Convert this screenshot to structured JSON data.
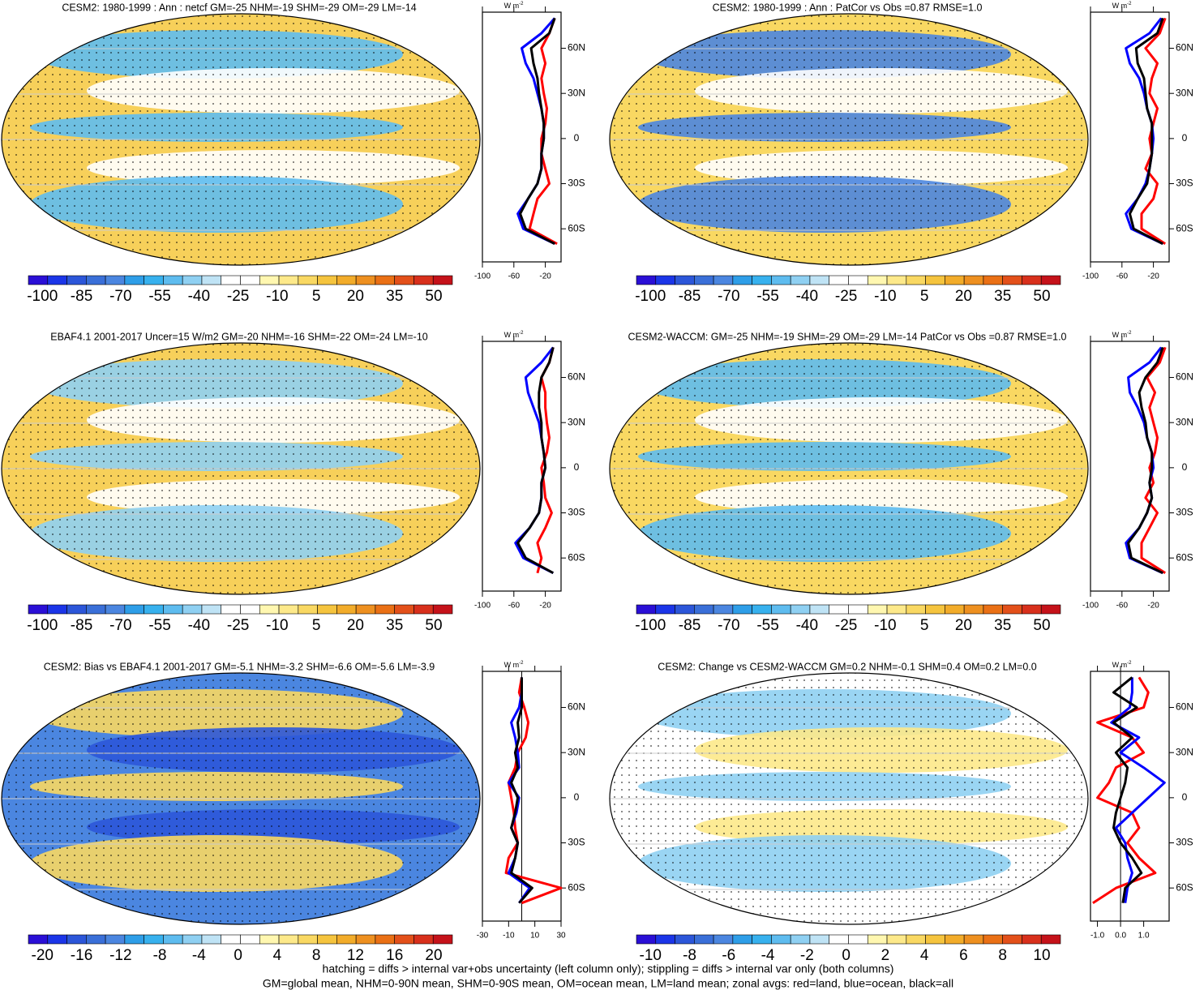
{
  "chart_data": [
    {
      "type": "line",
      "title": "CESM2: 1980-1999 : Ann : netcf GM=-25 NHM=-19 SHM=-29 OM=-29 LM=-14",
      "units": "W m",
      "units_exponent": "-2",
      "lat": [
        -70,
        -60,
        -50,
        -40,
        -30,
        -20,
        -10,
        0,
        10,
        20,
        30,
        40,
        50,
        60,
        70,
        80
      ],
      "series": [
        {
          "color": "#ff0000",
          "values": [
            -5,
            -40,
            -35,
            -30,
            -15,
            -20,
            -25,
            -25,
            -20,
            -18,
            -22,
            -25,
            -20,
            -25,
            -15,
            -8
          ]
        },
        {
          "color": "#0000ff",
          "values": [
            -8,
            -48,
            -55,
            -42,
            -30,
            -25,
            -25,
            -22,
            -22,
            -25,
            -30,
            -35,
            -45,
            -50,
            -25,
            -8
          ]
        },
        {
          "color": "#000000",
          "values": [
            -8,
            -45,
            -52,
            -42,
            -30,
            -25,
            -25,
            -22,
            -22,
            -25,
            -28,
            -30,
            -35,
            -38,
            -15,
            -8
          ]
        }
      ],
      "xlim": [
        -100,
        0
      ],
      "xticks": [
        -100,
        -60,
        -20
      ],
      "ylim": [
        -82,
        84
      ],
      "yticks": [
        {
          "value": -60,
          "label": "60S"
        },
        {
          "value": -30,
          "label": "30S"
        },
        0,
        {
          "value": 30,
          "label": "30N"
        },
        {
          "value": 60,
          "label": "60N"
        }
      ],
      "colorbar": {
        "colors": [
          "#2a0fd6",
          "#1b35e8",
          "#2c56d9",
          "#3a6fd8",
          "#4b86e0",
          "#2e9ee8",
          "#37b1ee",
          "#5ebcef",
          "#8fd0f2",
          "#bfe3f5",
          "#ffffff",
          "#ffffff",
          "#fff7b0",
          "#fde98a",
          "#f9d862",
          "#f5c43e",
          "#f2ac2a",
          "#ee9020",
          "#ea7015",
          "#e3501a",
          "#d8301c",
          "#c5121a"
        ],
        "labels": [
          -100,
          -85,
          -70,
          -55,
          -40,
          -25,
          -10,
          5,
          20,
          35,
          50
        ]
      }
    },
    {
      "type": "line",
      "title": "CESM2: 1980-1999 : Ann : PatCor vs Obs =0.87 RMSE=1.0",
      "units": "W m",
      "units_exponent": "-2",
      "lat": [
        -70,
        -60,
        -50,
        -40,
        -30,
        -20,
        -10,
        0,
        10,
        20,
        30,
        40,
        50,
        60,
        70,
        80
      ],
      "series": [
        {
          "color": "#ff0000",
          "values": [
            -5,
            -35,
            -35,
            -20,
            -15,
            -30,
            -22,
            -25,
            -20,
            -15,
            -25,
            -22,
            -15,
            -30,
            -12,
            -5
          ]
        },
        {
          "color": "#0000ff",
          "values": [
            -8,
            -48,
            -55,
            -40,
            -30,
            -25,
            -22,
            -20,
            -22,
            -28,
            -32,
            -38,
            -50,
            -55,
            -25,
            -10
          ]
        },
        {
          "color": "#000000",
          "values": [
            -8,
            -45,
            -50,
            -40,
            -28,
            -25,
            -22,
            -22,
            -22,
            -28,
            -30,
            -32,
            -40,
            -42,
            -15,
            -8
          ]
        }
      ],
      "xlim": [
        -100,
        0
      ],
      "xticks": [
        -100,
        -60,
        -20
      ],
      "ylim": [
        -82,
        84
      ],
      "yticks": [
        {
          "value": -60,
          "label": "60S"
        },
        {
          "value": -30,
          "label": "30S"
        },
        0,
        {
          "value": 30,
          "label": "30N"
        },
        {
          "value": 60,
          "label": "60N"
        }
      ],
      "colorbar": {
        "colors": [
          "#2a0fd6",
          "#1b35e8",
          "#2c56d9",
          "#3a6fd8",
          "#4b86e0",
          "#2e9ee8",
          "#37b1ee",
          "#5ebcef",
          "#8fd0f2",
          "#bfe3f5",
          "#ffffff",
          "#ffffff",
          "#fff7b0",
          "#fde98a",
          "#f9d862",
          "#f5c43e",
          "#f2ac2a",
          "#ee9020",
          "#ea7015",
          "#e3501a",
          "#d8301c",
          "#c5121a"
        ],
        "labels": [
          -100,
          -85,
          -70,
          -55,
          -40,
          -25,
          -10,
          5,
          20,
          35,
          50
        ]
      }
    },
    {
      "type": "line",
      "title": "EBAF4.1 2001-2017 Uncer=15 W/m2 GM=-20 NHM=-16 SHM=-22 OM=-24 LM=-10",
      "units": "W m",
      "units_exponent": "-2",
      "lat": [
        -70,
        -60,
        -50,
        -40,
        -30,
        -20,
        -10,
        0,
        10,
        20,
        30,
        40,
        50,
        60,
        70,
        80
      ],
      "series": [
        {
          "color": "#ff0000",
          "values": [
            -30,
            -25,
            -30,
            -20,
            -12,
            -20,
            -22,
            -25,
            -18,
            -15,
            -18,
            -20,
            -20,
            -25,
            -15,
            -10
          ]
        },
        {
          "color": "#0000ff",
          "values": [
            -10,
            -48,
            -58,
            -40,
            -28,
            -25,
            -25,
            -20,
            -22,
            -25,
            -28,
            -35,
            -42,
            -45,
            -25,
            -10
          ]
        },
        {
          "color": "#000000",
          "values": [
            -10,
            -45,
            -55,
            -40,
            -28,
            -25,
            -25,
            -20,
            -22,
            -25,
            -25,
            -28,
            -28,
            -25,
            -15,
            -10
          ]
        }
      ],
      "xlim": [
        -100,
        0
      ],
      "xticks": [
        -100,
        -60,
        -20
      ],
      "ylim": [
        -82,
        84
      ],
      "yticks": [
        {
          "value": -60,
          "label": "60S"
        },
        {
          "value": -30,
          "label": "30S"
        },
        0,
        {
          "value": 30,
          "label": "30N"
        },
        {
          "value": 60,
          "label": "60N"
        }
      ],
      "colorbar": {
        "colors": [
          "#2a0fd6",
          "#1b35e8",
          "#2c56d9",
          "#3a6fd8",
          "#4b86e0",
          "#2e9ee8",
          "#37b1ee",
          "#5ebcef",
          "#8fd0f2",
          "#bfe3f5",
          "#ffffff",
          "#ffffff",
          "#fff7b0",
          "#fde98a",
          "#f9d862",
          "#f5c43e",
          "#f2ac2a",
          "#ee9020",
          "#ea7015",
          "#e3501a",
          "#d8301c",
          "#c5121a"
        ],
        "labels": [
          -100,
          -85,
          -70,
          -55,
          -40,
          -25,
          -10,
          5,
          20,
          35,
          50
        ]
      }
    },
    {
      "type": "line",
      "title": "CESM2-WACCM: GM=-25 NHM=-19 SHM=-29 OM=-29 LM=-14 PatCor vs Obs =0.87 RMSE=1.0",
      "units": "W m",
      "units_exponent": "-2",
      "lat": [
        -70,
        -60,
        -50,
        -40,
        -30,
        -20,
        -10,
        0,
        10,
        20,
        30,
        40,
        50,
        60,
        70,
        80
      ],
      "series": [
        {
          "color": "#ff0000",
          "values": [
            -5,
            -35,
            -35,
            -25,
            -15,
            -30,
            -20,
            -25,
            -18,
            -15,
            -20,
            -25,
            -18,
            -28,
            -12,
            -5
          ]
        },
        {
          "color": "#0000ff",
          "values": [
            -8,
            -50,
            -55,
            -38,
            -28,
            -22,
            -25,
            -20,
            -22,
            -28,
            -32,
            -40,
            -50,
            -52,
            -25,
            -10
          ]
        },
        {
          "color": "#000000",
          "values": [
            -8,
            -48,
            -52,
            -38,
            -28,
            -22,
            -25,
            -22,
            -22,
            -28,
            -30,
            -35,
            -38,
            -30,
            -15,
            -8
          ]
        }
      ],
      "xlim": [
        -100,
        0
      ],
      "xticks": [
        -100,
        -60,
        -20
      ],
      "ylim": [
        -82,
        84
      ],
      "yticks": [
        {
          "value": -60,
          "label": "60S"
        },
        {
          "value": -30,
          "label": "30S"
        },
        0,
        {
          "value": 30,
          "label": "30N"
        },
        {
          "value": 60,
          "label": "60N"
        }
      ],
      "colorbar": {
        "colors": [
          "#2a0fd6",
          "#1b35e8",
          "#2c56d9",
          "#3a6fd8",
          "#4b86e0",
          "#2e9ee8",
          "#37b1ee",
          "#5ebcef",
          "#8fd0f2",
          "#bfe3f5",
          "#ffffff",
          "#ffffff",
          "#fff7b0",
          "#fde98a",
          "#f9d862",
          "#f5c43e",
          "#f2ac2a",
          "#ee9020",
          "#ea7015",
          "#e3501a",
          "#d8301c",
          "#c5121a"
        ],
        "labels": [
          -100,
          -85,
          -70,
          -55,
          -40,
          -25,
          -10,
          5,
          20,
          35,
          50
        ]
      }
    },
    {
      "type": "line",
      "title": "CESM2: Bias vs EBAF4.1 2001-2017 GM=-5.1 NHM=-3.2 SHM=-6.6 OM=-5.6 LM=-3.9",
      "units": "W m",
      "units_exponent": "-2",
      "lat": [
        -70,
        -60,
        -50,
        -40,
        -30,
        -20,
        -10,
        0,
        10,
        20,
        30,
        40,
        50,
        60,
        70,
        80
      ],
      "series": [
        {
          "color": "#ff0000",
          "values": [
            0,
            30,
            -12,
            -10,
            -3,
            -5,
            -6,
            -8,
            -10,
            -5,
            -3,
            3,
            5,
            2,
            -2,
            0
          ]
        },
        {
          "color": "#0000ff",
          "values": [
            -2,
            6,
            -10,
            -5,
            -3,
            -8,
            -4,
            -2,
            -10,
            -2,
            -3,
            -5,
            -8,
            -2,
            0,
            0
          ]
        },
        {
          "color": "#000000",
          "values": [
            -2,
            8,
            -8,
            -5,
            -3,
            -8,
            -5,
            -3,
            -8,
            -3,
            -5,
            -2,
            -3,
            0,
            0,
            0
          ]
        }
      ],
      "xlim": [
        -30,
        30
      ],
      "xticks": [
        -30,
        -10,
        10,
        30
      ],
      "ylim": [
        -82,
        84
      ],
      "yticks": [
        {
          "value": -60,
          "label": "60S"
        },
        {
          "value": -30,
          "label": "30S"
        },
        0,
        {
          "value": 30,
          "label": "30N"
        },
        {
          "value": 60,
          "label": "60N"
        }
      ],
      "colorbar": {
        "colors": [
          "#2a0fd6",
          "#1b35e8",
          "#2c56d9",
          "#3a6fd8",
          "#4b86e0",
          "#2e9ee8",
          "#37b1ee",
          "#5ebcef",
          "#8fd0f2",
          "#bfe3f5",
          "#ffffff",
          "#ffffff",
          "#fff7b0",
          "#fde98a",
          "#f9d862",
          "#f5c43e",
          "#f2ac2a",
          "#ee9020",
          "#ea7015",
          "#e3501a",
          "#d8301c",
          "#c5121a"
        ],
        "labels": [
          -20,
          -16,
          -12,
          -8,
          -4,
          0,
          4,
          8,
          12,
          16,
          20
        ]
      }
    },
    {
      "type": "line",
      "title": "CESM2: Change vs CESM2-WACCM GM=0.2 NHM=-0.1 SHM=0.4 OM=0.2 LM=0.0",
      "units": "W m",
      "units_exponent": "-2",
      "lat": [
        -70,
        -60,
        -50,
        -40,
        -30,
        -20,
        -10,
        0,
        10,
        20,
        30,
        40,
        50,
        60,
        70,
        80
      ],
      "series": [
        {
          "color": "#ff0000",
          "values": [
            -1.2,
            -0.2,
            1.5,
            0.8,
            0.3,
            0.8,
            0.5,
            -1.0,
            -0.5,
            -0.2,
            1.0,
            0.5,
            -1.0,
            1.0,
            1.2,
            0.8
          ]
        },
        {
          "color": "#0000ff",
          "values": [
            0.2,
            0.3,
            0.5,
            0.3,
            0.2,
            -0.2,
            0.5,
            1.2,
            1.9,
            1.0,
            0.0,
            0.8,
            -0.4,
            0.4,
            0.5,
            0.5
          ]
        },
        {
          "color": "#000000",
          "values": [
            0.1,
            0.2,
            0.9,
            0.5,
            0.0,
            -0.3,
            -0.2,
            0.0,
            0.2,
            0.3,
            -0.2,
            0.5,
            -0.3,
            0.7,
            -0.3,
            0.5
          ]
        }
      ],
      "xlim": [
        -1.3,
        2.1
      ],
      "xticks": [
        {
          "value": -1,
          "label": "-1.0"
        },
        {
          "value": 0,
          "label": "0.0"
        },
        {
          "value": 1,
          "label": "1.0"
        }
      ],
      "ylim": [
        -82,
        84
      ],
      "yticks": [
        {
          "value": -60,
          "label": "60S"
        },
        {
          "value": -30,
          "label": "30S"
        },
        0,
        {
          "value": 30,
          "label": "30N"
        },
        {
          "value": 60,
          "label": "60N"
        }
      ],
      "colorbar": {
        "colors": [
          "#2a0fd6",
          "#1b35e8",
          "#2c56d9",
          "#3a6fd8",
          "#4b86e0",
          "#2e9ee8",
          "#37b1ee",
          "#5ebcef",
          "#8fd0f2",
          "#bfe3f5",
          "#ffffff",
          "#ffffff",
          "#fff7b0",
          "#fde98a",
          "#f9d862",
          "#f5c43e",
          "#f2ac2a",
          "#ee9020",
          "#ea7015",
          "#e3501a",
          "#d8301c",
          "#c5121a"
        ],
        "labels": [
          -10,
          -8,
          -6,
          -4,
          -2,
          0,
          2,
          4,
          6,
          8,
          10
        ]
      }
    }
  ],
  "footnote": [
    "hatching = diffs > internal var+obs uncertainty (left column only); stippling = diffs > internal var only (both columns)",
    "GM=global mean, NHM=0-90N mean, SHM=0-90S mean, OM=ocean mean, LM=land mean; zonal avgs: red=land, blue=ocean, black=all"
  ]
}
